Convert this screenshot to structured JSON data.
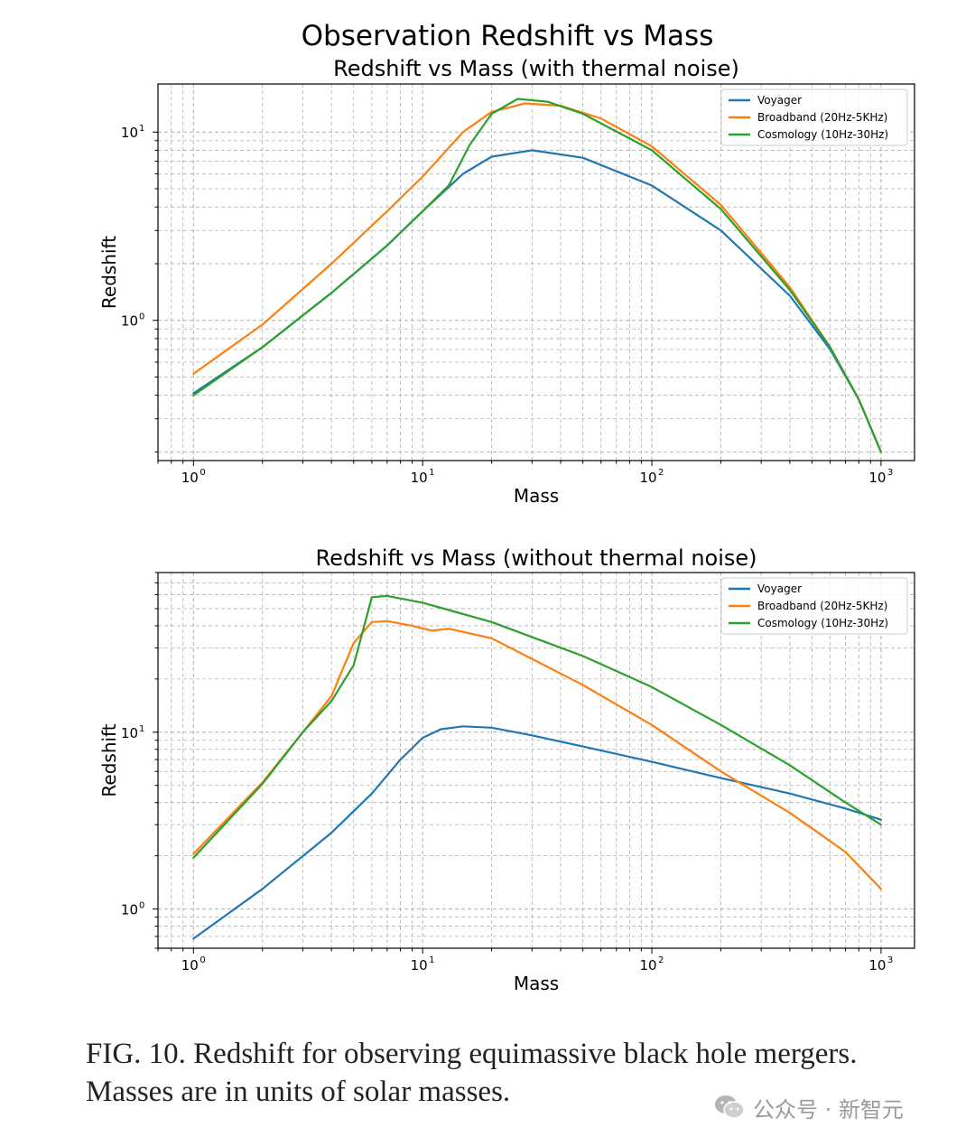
{
  "figure": {
    "suptitle": "Observation Redshift vs Mass",
    "caption": "FIG. 10.   Redshift for observing equimassive black hole mergers. Masses are in units of solar masses.",
    "watermark": "公众号 · 新智元"
  },
  "colors": {
    "Voyager": "#1f77b4",
    "Broadband": "#ff7f0e",
    "Cosmology": "#2ca02c",
    "grid": "#b0b0b0"
  },
  "chart_data": [
    {
      "type": "line",
      "title": "Redshift vs Mass (with thermal noise)",
      "xlabel": "Mass",
      "ylabel": "Redshift",
      "xscale": "log",
      "yscale": "log",
      "xlim": [
        0.7,
        1400
      ],
      "ylim": [
        0.18,
        18
      ],
      "grid": true,
      "legend": "top-right",
      "xticks": [
        {
          "base": "10",
          "exp": "0",
          "value": 1
        },
        {
          "base": "10",
          "exp": "1",
          "value": 10
        },
        {
          "base": "10",
          "exp": "2",
          "value": 100
        },
        {
          "base": "10",
          "exp": "3",
          "value": 1000
        }
      ],
      "yticks": [
        {
          "base": "10",
          "exp": "0",
          "value": 1
        },
        {
          "base": "10",
          "exp": "1",
          "value": 10
        }
      ],
      "series": [
        {
          "name": "Voyager",
          "color": "#1f77b4",
          "x": [
            1,
            2,
            4,
            7,
            10,
            15,
            20,
            30,
            50,
            100,
            200,
            400,
            600,
            800,
            1000
          ],
          "y": [
            0.41,
            0.72,
            1.4,
            2.5,
            3.8,
            6.0,
            7.4,
            8.0,
            7.3,
            5.2,
            3.0,
            1.35,
            0.7,
            0.38,
            0.2
          ]
        },
        {
          "name": "Broadband (20Hz-5KHz)",
          "color": "#ff7f0e",
          "x": [
            1,
            2,
            4,
            7,
            10,
            15,
            20,
            28,
            40,
            60,
            100,
            200,
            400,
            600,
            800,
            1000
          ],
          "y": [
            0.52,
            0.95,
            2.0,
            3.8,
            5.8,
            10.0,
            12.8,
            14.2,
            13.8,
            11.8,
            8.4,
            4.1,
            1.5,
            0.72,
            0.38,
            0.2
          ]
        },
        {
          "name": "Cosmology (10Hz-30Hz)",
          "color": "#2ca02c",
          "x": [
            1,
            2,
            4,
            7,
            10,
            13,
            16,
            20,
            26,
            35,
            50,
            100,
            200,
            400,
            600,
            800,
            1000
          ],
          "y": [
            0.4,
            0.72,
            1.4,
            2.5,
            3.8,
            5.2,
            8.5,
            12.5,
            15.0,
            14.5,
            12.5,
            8.0,
            3.9,
            1.45,
            0.72,
            0.38,
            0.2
          ]
        }
      ]
    },
    {
      "type": "line",
      "title": "Redshift vs Mass (without thermal noise)",
      "xlabel": "Mass",
      "ylabel": "Redshift",
      "xscale": "log",
      "yscale": "log",
      "xlim": [
        0.7,
        1400
      ],
      "ylim": [
        0.6,
        80
      ],
      "grid": true,
      "legend": "top-right",
      "xticks": [
        {
          "base": "10",
          "exp": "0",
          "value": 1
        },
        {
          "base": "10",
          "exp": "1",
          "value": 10
        },
        {
          "base": "10",
          "exp": "2",
          "value": 100
        },
        {
          "base": "10",
          "exp": "3",
          "value": 1000
        }
      ],
      "yticks": [
        {
          "base": "10",
          "exp": "0",
          "value": 1
        },
        {
          "base": "10",
          "exp": "1",
          "value": 10
        }
      ],
      "series": [
        {
          "name": "Voyager",
          "color": "#1f77b4",
          "x": [
            1,
            2,
            4,
            6,
            8,
            10,
            12,
            15,
            20,
            30,
            50,
            100,
            200,
            400,
            700,
            1000
          ],
          "y": [
            0.68,
            1.3,
            2.7,
            4.5,
            7.0,
            9.3,
            10.4,
            10.8,
            10.6,
            9.6,
            8.3,
            6.8,
            5.5,
            4.5,
            3.7,
            3.2
          ]
        },
        {
          "name": "Broadband (20Hz-5KHz)",
          "color": "#ff7f0e",
          "x": [
            1,
            2,
            3,
            4,
            5,
            6,
            7,
            9,
            11,
            13,
            20,
            30,
            50,
            100,
            200,
            400,
            700,
            1000
          ],
          "y": [
            2.05,
            5.2,
            10.0,
            16.0,
            32.0,
            42.0,
            42.5,
            40.0,
            37.5,
            38.5,
            34.0,
            26.0,
            18.5,
            11.0,
            6.0,
            3.5,
            2.1,
            1.3
          ]
        },
        {
          "name": "Cosmology (10Hz-30Hz)",
          "color": "#2ca02c",
          "x": [
            1,
            2,
            3,
            4,
            5,
            6,
            7,
            10,
            20,
            50,
            100,
            200,
            400,
            700,
            1000
          ],
          "y": [
            1.95,
            5.1,
            10.0,
            15.0,
            24.0,
            58.0,
            59.0,
            54.0,
            42.0,
            27.0,
            18.0,
            11.0,
            6.5,
            4.0,
            3.0
          ]
        }
      ]
    }
  ]
}
